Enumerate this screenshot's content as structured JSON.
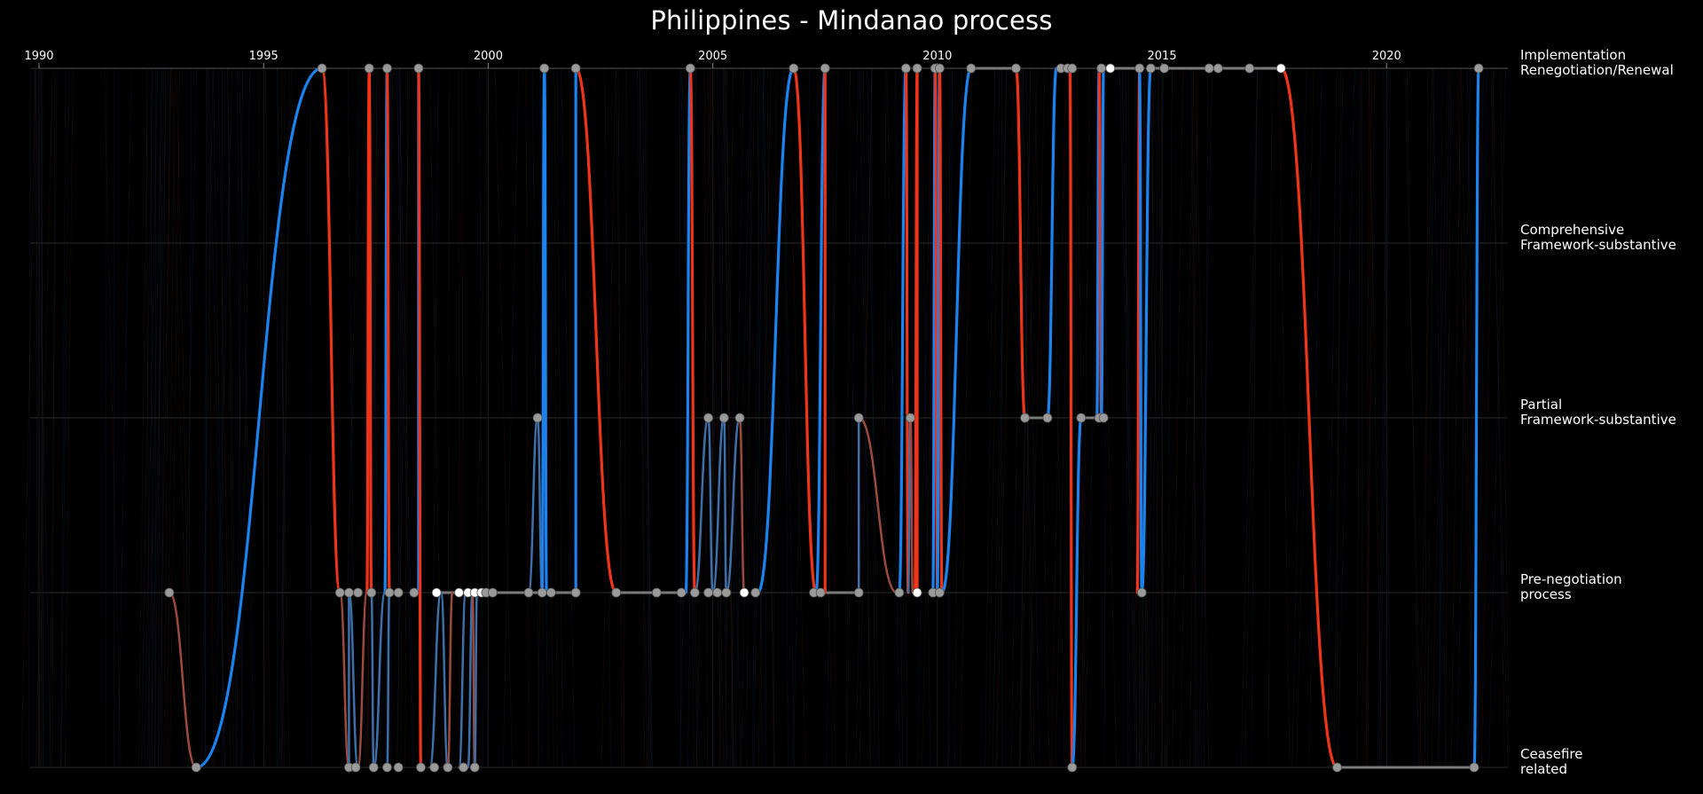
{
  "chart_data": {
    "type": "line",
    "title": "Philippines - Mindanao process",
    "x_ticks": [
      1990,
      1995,
      2000,
      2005,
      2010,
      2015,
      2020
    ],
    "xlim": [
      1990,
      2022.7
    ],
    "stages": [
      "Implementation\nRenegotiation/Renewal",
      "Comprehensive\nFramework-substantive",
      "Partial\nFramework-substantive",
      "Pre-negotiation\nprocess",
      "Ceasefire\nrelated"
    ],
    "colors": {
      "blue": "#1a83f0",
      "red": "#f0341a",
      "faded_blue": "#3f6fa8",
      "faded_red": "#9c4a3c",
      "connector": "#7a7a7a",
      "grid": "#2a2a2a",
      "node": "#9a9a9a",
      "node_highlight": "#ffffff"
    },
    "transitions": [
      {
        "from_year": 1992.9,
        "from_stage": 3,
        "to_year": 1993.5,
        "to_stage": 4,
        "color": "faded_red"
      },
      {
        "from_year": 1993.5,
        "from_stage": 4,
        "to_year": 1996.3,
        "to_stage": 0,
        "color": "blue"
      },
      {
        "from_year": 1996.3,
        "from_stage": 0,
        "to_year": 1996.7,
        "to_stage": 3,
        "color": "red"
      },
      {
        "from_year": 1996.7,
        "from_stage": 3,
        "to_year": 1996.9,
        "to_stage": 4,
        "color": "faded_red"
      },
      {
        "from_year": 1996.9,
        "from_stage": 4,
        "to_year": 1996.9,
        "to_stage": 3,
        "color": "faded_blue"
      },
      {
        "from_year": 1996.9,
        "from_stage": 3,
        "to_year": 1997.1,
        "to_stage": 4,
        "color": "faded_blue"
      },
      {
        "from_year": 1997.1,
        "from_stage": 4,
        "to_year": 1997.3,
        "to_stage": 3,
        "color": "faded_red"
      },
      {
        "from_year": 1997.3,
        "from_stage": 3,
        "to_year": 1997.35,
        "to_stage": 0,
        "color": "red"
      },
      {
        "from_year": 1997.35,
        "from_stage": 0,
        "to_year": 1997.4,
        "to_stage": 3,
        "color": "red"
      },
      {
        "from_year": 1997.4,
        "from_stage": 3,
        "to_year": 1997.45,
        "to_stage": 4,
        "color": "faded_blue"
      },
      {
        "from_year": 1997.45,
        "from_stage": 4,
        "to_year": 1997.7,
        "to_stage": 3,
        "color": "faded_blue"
      },
      {
        "from_year": 1997.7,
        "from_stage": 3,
        "to_year": 1997.75,
        "to_stage": 0,
        "color": "blue"
      },
      {
        "from_year": 1997.75,
        "from_stage": 0,
        "to_year": 1997.8,
        "to_stage": 3,
        "color": "red"
      },
      {
        "from_year": 1997.8,
        "from_stage": 3,
        "to_year": 1997.75,
        "to_stage": 4,
        "color": "faded_blue"
      },
      {
        "from_year": 1998.45,
        "from_stage": 3,
        "to_year": 1998.45,
        "to_stage": 0,
        "color": "blue"
      },
      {
        "from_year": 1998.45,
        "from_stage": 0,
        "to_year": 1998.5,
        "to_stage": 4,
        "color": "red"
      },
      {
        "from_year": 1998.7,
        "from_stage": 4,
        "to_year": 1998.95,
        "to_stage": 3,
        "color": "faded_blue"
      },
      {
        "from_year": 1998.95,
        "from_stage": 3,
        "to_year": 1999.1,
        "to_stage": 4,
        "color": "faded_blue"
      },
      {
        "from_year": 1999.1,
        "from_stage": 4,
        "to_year": 1999.2,
        "to_stage": 3,
        "color": "faded_red"
      },
      {
        "from_year": 1999.35,
        "from_stage": 4,
        "to_year": 1999.5,
        "to_stage": 3,
        "color": "faded_blue"
      },
      {
        "from_year": 1999.55,
        "from_stage": 4,
        "to_year": 1999.65,
        "to_stage": 3,
        "color": "faded_blue"
      },
      {
        "from_year": 1999.65,
        "from_stage": 3,
        "to_year": 1999.7,
        "to_stage": 4,
        "color": "faded_red"
      },
      {
        "from_year": 1999.7,
        "from_stage": 4,
        "to_year": 1999.75,
        "to_stage": 3,
        "color": "faded_blue"
      },
      {
        "from_year": 2000.9,
        "from_stage": 3,
        "to_year": 2001.1,
        "to_stage": 2,
        "color": "faded_blue"
      },
      {
        "from_year": 2001.1,
        "from_stage": 2,
        "to_year": 2001.2,
        "to_stage": 3,
        "color": "faded_blue"
      },
      {
        "from_year": 2001.2,
        "from_stage": 3,
        "to_year": 2001.25,
        "to_stage": 0,
        "color": "blue"
      },
      {
        "from_year": 2001.25,
        "from_stage": 0,
        "to_year": 2001.3,
        "to_stage": 3,
        "color": "blue"
      },
      {
        "from_year": 2001.95,
        "from_stage": 3,
        "to_year": 2001.95,
        "to_stage": 0,
        "color": "blue"
      },
      {
        "from_year": 2001.95,
        "from_stage": 0,
        "to_year": 2002.85,
        "to_stage": 3,
        "color": "red"
      },
      {
        "from_year": 2004.4,
        "from_stage": 3,
        "to_year": 2004.5,
        "to_stage": 0,
        "color": "blue"
      },
      {
        "from_year": 2004.5,
        "from_stage": 0,
        "to_year": 2004.6,
        "to_stage": 3,
        "color": "red"
      },
      {
        "from_year": 2004.6,
        "from_stage": 3,
        "to_year": 2004.9,
        "to_stage": 2,
        "color": "faded_blue"
      },
      {
        "from_year": 2004.9,
        "from_stage": 2,
        "to_year": 2005.0,
        "to_stage": 3,
        "color": "faded_blue"
      },
      {
        "from_year": 2005.0,
        "from_stage": 3,
        "to_year": 2005.25,
        "to_stage": 2,
        "color": "faded_blue"
      },
      {
        "from_year": 2005.25,
        "from_stage": 2,
        "to_year": 2005.3,
        "to_stage": 3,
        "color": "faded_blue"
      },
      {
        "from_year": 2005.3,
        "from_stage": 3,
        "to_year": 2005.6,
        "to_stage": 2,
        "color": "faded_blue"
      },
      {
        "from_year": 2005.6,
        "from_stage": 2,
        "to_year": 2005.7,
        "to_stage": 3,
        "color": "faded_red"
      },
      {
        "from_year": 2006.0,
        "from_stage": 3,
        "to_year": 2006.8,
        "to_stage": 0,
        "color": "blue"
      },
      {
        "from_year": 2006.8,
        "from_stage": 0,
        "to_year": 2007.3,
        "to_stage": 3,
        "color": "red"
      },
      {
        "from_year": 2007.3,
        "from_stage": 3,
        "to_year": 2007.5,
        "to_stage": 0,
        "color": "blue"
      },
      {
        "from_year": 2007.5,
        "from_stage": 0,
        "to_year": 2007.5,
        "to_stage": 3,
        "color": "red"
      },
      {
        "from_year": 2008.25,
        "from_stage": 3,
        "to_year": 2008.25,
        "to_stage": 2,
        "color": "faded_blue"
      },
      {
        "from_year": 2008.25,
        "from_stage": 2,
        "to_year": 2009.1,
        "to_stage": 3,
        "color": "faded_red"
      },
      {
        "from_year": 2009.15,
        "from_stage": 3,
        "to_year": 2009.3,
        "to_stage": 0,
        "color": "blue"
      },
      {
        "from_year": 2009.3,
        "from_stage": 0,
        "to_year": 2009.35,
        "to_stage": 3,
        "color": "red"
      },
      {
        "from_year": 2009.35,
        "from_stage": 3,
        "to_year": 2009.4,
        "to_stage": 2,
        "color": "faded_blue"
      },
      {
        "from_year": 2009.4,
        "from_stage": 2,
        "to_year": 2009.45,
        "to_stage": 3,
        "color": "faded_red"
      },
      {
        "from_year": 2009.5,
        "from_stage": 3,
        "to_year": 2009.55,
        "to_stage": 0,
        "color": "red"
      },
      {
        "from_year": 2009.55,
        "from_stage": 0,
        "to_year": 2009.55,
        "to_stage": 3,
        "color": "red"
      },
      {
        "from_year": 2009.9,
        "from_stage": 3,
        "to_year": 2009.95,
        "to_stage": 0,
        "color": "blue"
      },
      {
        "from_year": 2009.95,
        "from_stage": 0,
        "to_year": 2010.0,
        "to_stage": 3,
        "color": "red"
      },
      {
        "from_year": 2010.0,
        "from_stage": 3,
        "to_year": 2010.05,
        "to_stage": 0,
        "color": "blue"
      },
      {
        "from_year": 2010.05,
        "from_stage": 0,
        "to_year": 2010.1,
        "to_stage": 3,
        "color": "red"
      },
      {
        "from_year": 2010.1,
        "from_stage": 3,
        "to_year": 2010.75,
        "to_stage": 0,
        "color": "blue"
      },
      {
        "from_year": 2011.75,
        "from_stage": 0,
        "to_year": 2011.95,
        "to_stage": 2,
        "color": "red"
      },
      {
        "from_year": 2012.45,
        "from_stage": 2,
        "to_year": 2012.65,
        "to_stage": 0,
        "color": "blue"
      },
      {
        "from_year": 2012.95,
        "from_stage": 0,
        "to_year": 2013.0,
        "to_stage": 4,
        "color": "red"
      },
      {
        "from_year": 2013.0,
        "from_stage": 4,
        "to_year": 2013.2,
        "to_stage": 2,
        "color": "blue"
      },
      {
        "from_year": 2013.55,
        "from_stage": 2,
        "to_year": 2013.6,
        "to_stage": 0,
        "color": "blue"
      },
      {
        "from_year": 2013.6,
        "from_stage": 0,
        "to_year": 2013.65,
        "to_stage": 2,
        "color": "red"
      },
      {
        "from_year": 2013.65,
        "from_stage": 2,
        "to_year": 2013.7,
        "to_stage": 0,
        "color": "blue"
      },
      {
        "from_year": 2014.45,
        "from_stage": 3,
        "to_year": 2014.5,
        "to_stage": 0,
        "color": "red"
      },
      {
        "from_year": 2014.5,
        "from_stage": 0,
        "to_year": 2014.55,
        "to_stage": 3,
        "color": "blue"
      },
      {
        "from_year": 2014.55,
        "from_stage": 3,
        "to_year": 2014.75,
        "to_stage": 0,
        "color": "blue"
      },
      {
        "from_year": 2017.65,
        "from_stage": 0,
        "to_year": 2018.9,
        "to_stage": 4,
        "color": "red"
      },
      {
        "from_year": 2021.95,
        "from_stage": 4,
        "to_year": 2022.05,
        "to_stage": 0,
        "color": "blue"
      }
    ],
    "connectors": [
      {
        "from_year": 1998.95,
        "to_year": 2000.1,
        "stage": 3
      },
      {
        "from_year": 2000.1,
        "to_year": 2001.95,
        "stage": 3
      },
      {
        "from_year": 2002.85,
        "to_year": 2004.4,
        "stage": 3
      },
      {
        "from_year": 2007.3,
        "to_year": 2008.25,
        "stage": 3
      },
      {
        "from_year": 2009.9,
        "to_year": 2010.1,
        "stage": 3
      },
      {
        "from_year": 2010.75,
        "to_year": 2011.75,
        "stage": 0
      },
      {
        "from_year": 2011.95,
        "to_year": 2012.45,
        "stage": 2
      },
      {
        "from_year": 2012.65,
        "to_year": 2012.95,
        "stage": 0
      },
      {
        "from_year": 2013.2,
        "to_year": 2013.65,
        "stage": 2
      },
      {
        "from_year": 2013.7,
        "to_year": 2014.45,
        "stage": 0
      },
      {
        "from_year": 2014.75,
        "to_year": 2017.65,
        "stage": 0
      },
      {
        "from_year": 2018.9,
        "to_year": 2021.95,
        "stage": 4
      }
    ],
    "nodes": [
      {
        "year": 1992.9,
        "stage": 3
      },
      {
        "year": 1993.5,
        "stage": 4
      },
      {
        "year": 1996.3,
        "stage": 0
      },
      {
        "year": 1997.35,
        "stage": 0
      },
      {
        "year": 1997.75,
        "stage": 0
      },
      {
        "year": 1998.45,
        "stage": 0
      },
      {
        "year": 1996.7,
        "stage": 3
      },
      {
        "year": 1996.9,
        "stage": 3
      },
      {
        "year": 1997.1,
        "stage": 3
      },
      {
        "year": 1997.4,
        "stage": 3
      },
      {
        "year": 1997.8,
        "stage": 3
      },
      {
        "year": 1998.0,
        "stage": 3
      },
      {
        "year": 1998.35,
        "stage": 3
      },
      {
        "year": 1998.85,
        "stage": 3,
        "highlight": true
      },
      {
        "year": 1999.35,
        "stage": 3,
        "highlight": true
      },
      {
        "year": 1999.55,
        "stage": 3,
        "highlight": true
      },
      {
        "year": 1999.7,
        "stage": 3,
        "highlight": true
      },
      {
        "year": 1999.85,
        "stage": 3,
        "highlight": true
      },
      {
        "year": 1999.95,
        "stage": 3
      },
      {
        "year": 2000.1,
        "stage": 3
      },
      {
        "year": 1996.9,
        "stage": 4
      },
      {
        "year": 1997.05,
        "stage": 4
      },
      {
        "year": 1997.45,
        "stage": 4
      },
      {
        "year": 1997.75,
        "stage": 4
      },
      {
        "year": 1998.0,
        "stage": 4
      },
      {
        "year": 1998.5,
        "stage": 4
      },
      {
        "year": 1998.8,
        "stage": 4
      },
      {
        "year": 1999.1,
        "stage": 4
      },
      {
        "year": 1999.45,
        "stage": 4
      },
      {
        "year": 1999.7,
        "stage": 4
      },
      {
        "year": 2000.9,
        "stage": 3
      },
      {
        "year": 2001.2,
        "stage": 3
      },
      {
        "year": 2001.4,
        "stage": 3
      },
      {
        "year": 2001.95,
        "stage": 3
      },
      {
        "year": 2001.1,
        "stage": 2
      },
      {
        "year": 2001.25,
        "stage": 0
      },
      {
        "year": 2001.95,
        "stage": 0
      },
      {
        "year": 2002.85,
        "stage": 3
      },
      {
        "year": 2003.75,
        "stage": 3
      },
      {
        "year": 2004.3,
        "stage": 3
      },
      {
        "year": 2004.6,
        "stage": 3
      },
      {
        "year": 2004.9,
        "stage": 3
      },
      {
        "year": 2005.1,
        "stage": 3
      },
      {
        "year": 2005.3,
        "stage": 3
      },
      {
        "year": 2005.7,
        "stage": 3,
        "highlight": true
      },
      {
        "year": 2005.95,
        "stage": 3
      },
      {
        "year": 2004.5,
        "stage": 0
      },
      {
        "year": 2004.9,
        "stage": 2
      },
      {
        "year": 2005.25,
        "stage": 2
      },
      {
        "year": 2005.6,
        "stage": 2
      },
      {
        "year": 2006.8,
        "stage": 0
      },
      {
        "year": 2007.5,
        "stage": 0
      },
      {
        "year": 2007.25,
        "stage": 3
      },
      {
        "year": 2007.4,
        "stage": 3
      },
      {
        "year": 2008.25,
        "stage": 3
      },
      {
        "year": 2008.25,
        "stage": 2
      },
      {
        "year": 2009.15,
        "stage": 3
      },
      {
        "year": 2009.55,
        "stage": 3,
        "highlight": true
      },
      {
        "year": 2009.9,
        "stage": 3
      },
      {
        "year": 2010.05,
        "stage": 3
      },
      {
        "year": 2009.3,
        "stage": 0
      },
      {
        "year": 2009.55,
        "stage": 0
      },
      {
        "year": 2009.95,
        "stage": 0
      },
      {
        "year": 2010.05,
        "stage": 0
      },
      {
        "year": 2009.4,
        "stage": 2
      },
      {
        "year": 2010.75,
        "stage": 0
      },
      {
        "year": 2011.75,
        "stage": 0
      },
      {
        "year": 2011.95,
        "stage": 2
      },
      {
        "year": 2012.45,
        "stage": 2
      },
      {
        "year": 2012.75,
        "stage": 0
      },
      {
        "year": 2012.9,
        "stage": 0
      },
      {
        "year": 2013.0,
        "stage": 0
      },
      {
        "year": 2013.0,
        "stage": 4
      },
      {
        "year": 2013.2,
        "stage": 2
      },
      {
        "year": 2013.6,
        "stage": 2
      },
      {
        "year": 2013.7,
        "stage": 2
      },
      {
        "year": 2013.65,
        "stage": 0
      },
      {
        "year": 2013.85,
        "stage": 0,
        "highlight": true
      },
      {
        "year": 2014.55,
        "stage": 3
      },
      {
        "year": 2014.5,
        "stage": 0
      },
      {
        "year": 2014.75,
        "stage": 0
      },
      {
        "year": 2015.05,
        "stage": 0
      },
      {
        "year": 2016.05,
        "stage": 0
      },
      {
        "year": 2016.25,
        "stage": 0
      },
      {
        "year": 2016.95,
        "stage": 0
      },
      {
        "year": 2017.65,
        "stage": 0,
        "highlight": true
      },
      {
        "year": 2018.9,
        "stage": 4
      },
      {
        "year": 2021.95,
        "stage": 4
      },
      {
        "year": 2022.05,
        "stage": 0
      }
    ]
  }
}
